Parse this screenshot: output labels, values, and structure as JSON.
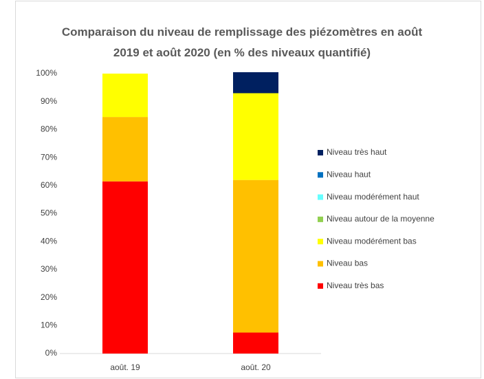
{
  "chart_data": {
    "type": "stacked_bar",
    "title": "Comparaison du niveau de remplissage des piézomètres en août 2019 et août 2020 (en % des niveaux quantifié)",
    "categories": [
      "août. 19",
      "août. 20"
    ],
    "series": [
      {
        "name": "Niveau très bas",
        "color": "#ff0000",
        "values": [
          61.5,
          7.5
        ]
      },
      {
        "name": "Niveau bas",
        "color": "#ffc000",
        "values": [
          23,
          54.5
        ]
      },
      {
        "name": "Niveau modérément bas",
        "color": "#ffff00",
        "values": [
          15.5,
          31
        ]
      },
      {
        "name": "Niveau autour de la moyenne",
        "color": "#92d050",
        "values": [
          0,
          0
        ]
      },
      {
        "name": "Niveau modérément haut",
        "color": "#66ffff",
        "values": [
          0,
          0
        ]
      },
      {
        "name": "Niveau haut",
        "color": "#0070c0",
        "values": [
          0,
          0
        ]
      },
      {
        "name": "Niveau très haut",
        "color": "#002060",
        "values": [
          0,
          7.5
        ]
      }
    ],
    "ylim": [
      0,
      100
    ],
    "yticks": [
      {
        "value": 0,
        "label": "0%"
      },
      {
        "value": 10,
        "label": "10%"
      },
      {
        "value": 20,
        "label": "20%"
      },
      {
        "value": 30,
        "label": "30%"
      },
      {
        "value": 40,
        "label": "40%"
      },
      {
        "value": 50,
        "label": "50%"
      },
      {
        "value": 60,
        "label": "60%"
      },
      {
        "value": 70,
        "label": "70%"
      },
      {
        "value": 80,
        "label": "80%"
      },
      {
        "value": 90,
        "label": "90%"
      },
      {
        "value": 100,
        "label": "100%"
      }
    ],
    "grid": false,
    "legend": "right"
  }
}
